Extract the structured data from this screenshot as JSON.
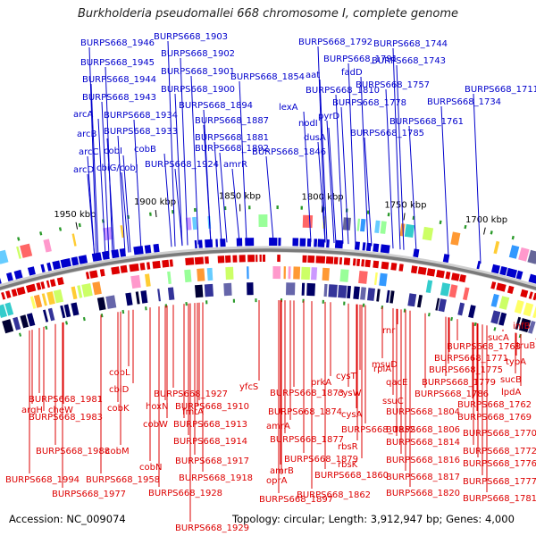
{
  "title": "Burkholderia pseudomallei 668 chromosome I, complete genome",
  "footer": {
    "accession": "Accession: NC_009074",
    "topology": "Topology: circular; Length: 3,912,947 bp; Genes: 4,000"
  },
  "colors": {
    "forward": "#0000cc",
    "reverse": "#dd0000",
    "backbone": "#7a7a7a",
    "ticks": "#2a9a2a"
  },
  "scale_labels": [
    "1950 kbp",
    "1900 kbp",
    "1850 kbp",
    "1800 kbp",
    "1750 kbp",
    "1700 kbp"
  ],
  "forward_labels": [
    "BURPS668_1946",
    "BURPS668_1903",
    "BURPS668_1902",
    "BURPS668_1945",
    "BURPS668_1901",
    "BURPS668_1944",
    "BURPS668_1900",
    "BURPS668_1943",
    "BURPS668_1894",
    "BURPS668_1934",
    "BURPS668_1887",
    "BURPS668_1933",
    "BURPS668_1881",
    "BURPS668_1892",
    "BURPS668_1924",
    "BURPS668_1854",
    "BURPS668_1846",
    "BURPS668_1792",
    "BURPS668_1791",
    "BURPS668_1810",
    "BURPS668_1778",
    "BURPS668_1785",
    "BURPS668_1744",
    "BURPS668_1743",
    "BURPS668_1757",
    "BURPS668_1711",
    "BURPS668_1734",
    "BURPS668_1761",
    "arcA",
    "arcB",
    "arcC",
    "arcD",
    "cobI",
    "cbiG/cobJ",
    "cobB",
    "amrR",
    "aat",
    "fadD",
    "lexA",
    "nodI",
    "pyrD",
    "dusA"
  ],
  "reverse_labels": [
    "BURPS668_1981",
    "BURPS668_1983",
    "BURPS668_1988",
    "BURPS668_1994",
    "BURPS668_1977",
    "BURPS668_1958",
    "BURPS668_1927",
    "BURPS668_1910",
    "BURPS668_1913",
    "BURPS668_1914",
    "BURPS668_1917",
    "BURPS668_1918",
    "BURPS668_1928",
    "BURPS668_1929",
    "BURPS668_1897",
    "BURPS668_1873",
    "BURPS668_1874",
    "BURPS668_1877",
    "BURPS668_1879",
    "BURPS668_1852",
    "BURPS668_1860",
    "BURPS668_1862",
    "BURPS668_1804",
    "BURPS668_1806",
    "BURPS668_1814",
    "BURPS668_1816",
    "BURPS668_1817",
    "BURPS668_1820",
    "BURPS668_1768",
    "BURPS668_1771",
    "BURPS668_1775",
    "BURPS668_1779",
    "BURPS668_1786",
    "BURPS668_1762",
    "BURPS668_1769",
    "BURPS668_1770",
    "BURPS668_1772",
    "BURPS668_1776",
    "BURPS668_1777",
    "BURPS668_1781",
    "argH",
    "cheW",
    "cobL",
    "cbiD",
    "cobK",
    "cobM",
    "hoxN",
    "cobW",
    "cobN",
    "fmtA",
    "yfcS",
    "amrA",
    "amrB",
    "oprA",
    "prkA",
    "cysT",
    "cysW",
    "cysA",
    "rbsR",
    "rbsK",
    "msuD",
    "rnr",
    "rpiA",
    "qacE",
    "ssuC",
    "sucA",
    "truB",
    "infB",
    "typA",
    "sucB",
    "lpdA"
  ]
}
